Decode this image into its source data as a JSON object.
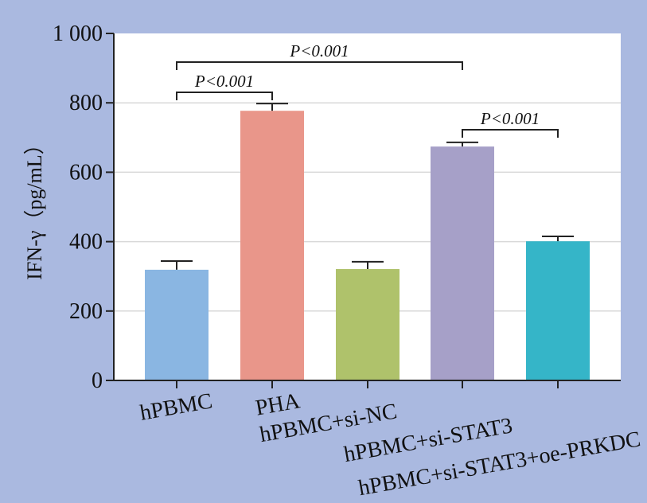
{
  "chart_data": {
    "type": "bar",
    "y_label": "IFN-γ（pg/mL）",
    "categories": [
      "hPBMC",
      "PHA",
      "hPBMC+si-NC",
      "hPBMC+si-STAT3",
      "hPBMC+si-STAT3+oe-PRKDC"
    ],
    "values": [
      319,
      777,
      321,
      674,
      401
    ],
    "errors": [
      25,
      21,
      21,
      12,
      14
    ],
    "colors": [
      "#8ab6e2",
      "#e9968a",
      "#afc26b",
      "#a6a0c8",
      "#35b5c8"
    ],
    "ylim": [
      0,
      1000
    ],
    "yticks": [
      0,
      200,
      400,
      600,
      800,
      {
        "value": 1000,
        "label": "1 000"
      }
    ],
    "grid": true,
    "annotations": [
      "P<0.001",
      "P<0.001",
      "P<0.001"
    ]
  }
}
